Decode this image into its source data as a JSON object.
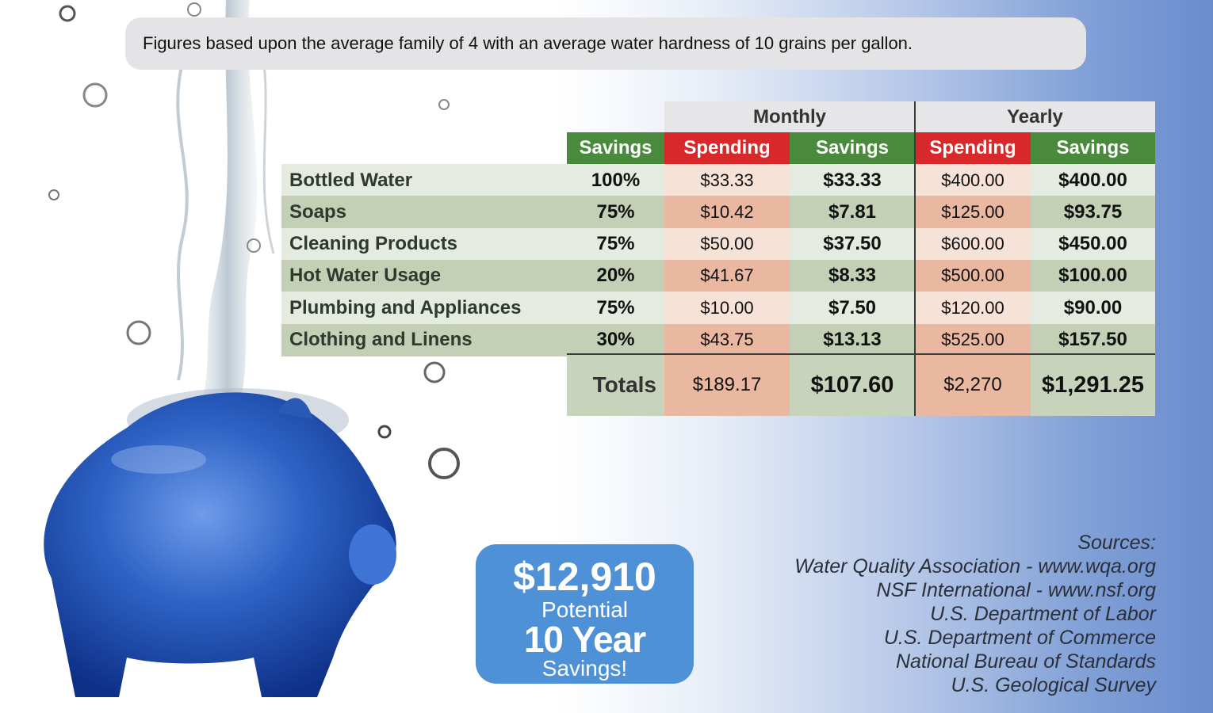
{
  "note": "Figures based upon the average family of 4 with an average water hardness of 10 grains per gallon.",
  "table": {
    "group_monthly": "Monthly",
    "group_yearly": "Yearly",
    "col_savings": "Savings",
    "col_spending": "Spending",
    "col_savings2": "Savings",
    "col_spending2": "Spending",
    "col_savings3": "Savings",
    "rows": [
      {
        "label": "Bottled Water",
        "pct": "100%",
        "m_spend": "$33.33",
        "m_save": "$33.33",
        "y_spend": "$400.00",
        "y_save": "$400.00"
      },
      {
        "label": "Soaps",
        "pct": "75%",
        "m_spend": "$10.42",
        "m_save": "$7.81",
        "y_spend": "$125.00",
        "y_save": "$93.75"
      },
      {
        "label": "Cleaning Products",
        "pct": "75%",
        "m_spend": "$50.00",
        "m_save": "$37.50",
        "y_spend": "$600.00",
        "y_save": "$450.00"
      },
      {
        "label": "Hot Water Usage",
        "pct": "20%",
        "m_spend": "$41.67",
        "m_save": "$8.33",
        "y_spend": "$500.00",
        "y_save": "$100.00"
      },
      {
        "label": "Plumbing and Appliances",
        "pct": "75%",
        "m_spend": "$10.00",
        "m_save": "$7.50",
        "y_spend": "$120.00",
        "y_save": "$90.00"
      },
      {
        "label": "Clothing and Linens",
        "pct": "30%",
        "m_spend": "$43.75",
        "m_save": "$13.13",
        "y_spend": "$525.00",
        "y_save": "$157.50"
      }
    ],
    "totals": {
      "label": "Totals",
      "m_spend": "$189.17",
      "m_save": "$107.60",
      "y_spend": "$2,270",
      "y_save": "$1,291.25"
    }
  },
  "badge": {
    "amount": "$12,910",
    "line1": "Potential",
    "line2": "10 Year",
    "line3": "Savings!"
  },
  "sources": {
    "title": "Sources:",
    "items": [
      "Water Quality Association - www.wqa.org",
      "NSF International - www.nsf.org",
      "U.S. Department of Labor",
      "U.S. Department of Commerce",
      "National Bureau of Standards",
      "U.S. Geological Survey"
    ]
  },
  "colors": {
    "savings_header": "#4a8a3c",
    "spending_header": "#d8282a",
    "badge": "#4f91d6",
    "pig": "#2c5fbf"
  },
  "icons": [
    "piggy-bank-icon",
    "water-stream-icon"
  ]
}
